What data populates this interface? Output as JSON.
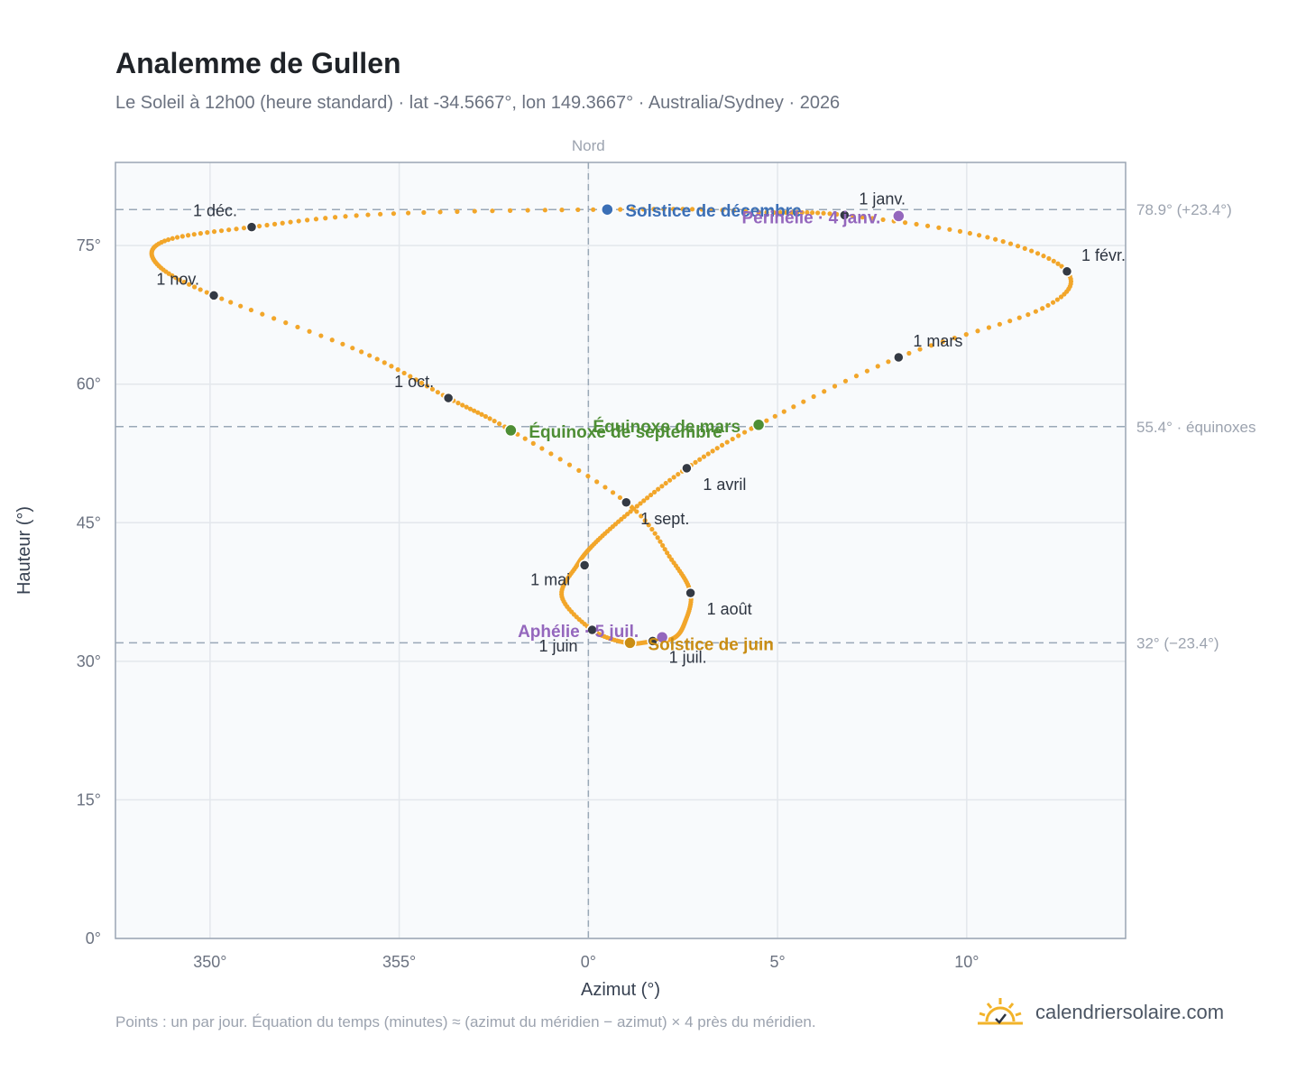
{
  "header": {
    "title": "Analemme de Gullen",
    "subtitle": "Le Soleil à 12h00 (heure standard) · lat -34.5667°, lon 149.3667° · Australia/Sydney · 2026"
  },
  "footer": {
    "note": "Points : un par jour. Équation du temps (minutes) ≈ (azimut du méridien − azimut) × 4 près du méridien.",
    "brand": "calendriersolaire.com"
  },
  "colors": {
    "curve": "#f2a62a",
    "month_dot": "#343a44",
    "solstice_dec": "#3b6fb6",
    "solstice_jun": "#c98d14",
    "equinox": "#4e8e35",
    "perihelion": "#9467bd",
    "plot_bg": "#f8fafc",
    "grid": "#e3e7ec",
    "ref_line": "#9aa8b7"
  },
  "chart_data": {
    "type": "scatter",
    "xlabel": "Azimut (°)",
    "ylabel": "Hauteur (°)",
    "x_axis": {
      "domain": [
        347.5,
        14.2
      ],
      "wraps_at": 360,
      "ticks": [
        350,
        355,
        0,
        5,
        10
      ],
      "tick_labels": [
        "350°",
        "355°",
        "0°",
        "5°",
        "10°"
      ]
    },
    "y_axis": {
      "domain": [
        0,
        84
      ],
      "ticks": [
        0,
        15,
        30,
        45,
        60,
        75
      ],
      "tick_labels": [
        "0°",
        "15°",
        "30°",
        "45°",
        "60°",
        "75°"
      ]
    },
    "grid": true,
    "meridian": {
      "azimuth": 0,
      "label": "Nord"
    },
    "reference_lines": [
      {
        "altitude": 78.9,
        "label": "78.9° (+23.4°)"
      },
      {
        "altitude": 55.4,
        "label": "55.4° · équinoxes"
      },
      {
        "altitude": 32.0,
        "label": "32° (−23.4°)"
      }
    ],
    "series": [
      {
        "name": "",
        "marker": "daily",
        "points": [
          [
            6.77,
            78.3
          ],
          [
            10.55,
            75.9
          ],
          [
            12.65,
            72.2
          ],
          [
            12.0,
            68.2
          ],
          [
            8.2,
            62.9
          ],
          [
            4.5,
            55.6
          ],
          [
            2.6,
            50.9
          ],
          [
            1.2,
            46.5
          ],
          [
            0.2,
            42.9
          ],
          [
            -0.3,
            40.4
          ],
          [
            -0.7,
            37.0
          ],
          [
            0.1,
            33.4
          ],
          [
            1.0,
            32.0
          ],
          [
            1.6,
            32.1
          ],
          [
            2.25,
            32.5
          ],
          [
            2.55,
            34.2
          ],
          [
            2.7,
            37.4
          ],
          [
            2.2,
            41.0
          ],
          [
            1.0,
            47.2
          ],
          [
            -2.05,
            55.0
          ],
          [
            -3.7,
            58.5
          ],
          [
            -6.0,
            63.5
          ],
          [
            -9.9,
            69.6
          ],
          [
            -11.4,
            73.0
          ],
          [
            -11.2,
            75.5
          ],
          [
            -8.9,
            77.0
          ],
          [
            -5.5,
            78.4
          ],
          [
            0.5,
            78.9
          ],
          [
            4.5,
            78.6
          ],
          [
            6.77,
            78.3
          ]
        ]
      }
    ],
    "month_markers": [
      {
        "label": "1 janv.",
        "az": 6.77,
        "alt": 78.3
      },
      {
        "label": "1 févr.",
        "az": 12.65,
        "alt": 72.2
      },
      {
        "label": "1 mars",
        "az": 8.2,
        "alt": 62.9
      },
      {
        "label": "1 avril",
        "az": 2.6,
        "alt": 50.9
      },
      {
        "label": "1 mai",
        "az": -0.1,
        "alt": 40.4
      },
      {
        "label": "1 juin",
        "az": 0.1,
        "alt": 33.4
      },
      {
        "label": "1 juil.",
        "az": 1.7,
        "alt": 32.2
      },
      {
        "label": "1 août",
        "az": 2.7,
        "alt": 37.4
      },
      {
        "label": "1 sept.",
        "az": 1.0,
        "alt": 47.2
      },
      {
        "label": "1 oct.",
        "az": -3.7,
        "alt": 58.5
      },
      {
        "label": "1 nov.",
        "az": -9.9,
        "alt": 69.6
      },
      {
        "label": "1 déc.",
        "az": -8.9,
        "alt": 77.0
      }
    ],
    "events": [
      {
        "label": "Solstice de décembre",
        "az": 0.5,
        "alt": 78.9,
        "color": "#3b6fb6"
      },
      {
        "label": "Périhélie · 4 janv.",
        "az": 8.2,
        "alt": 78.2,
        "color": "#9467bd"
      },
      {
        "label": "Équinoxe de mars",
        "az": 4.5,
        "alt": 55.6,
        "color": "#4e8e35"
      },
      {
        "label": "Équinoxe de septembre",
        "az": -2.05,
        "alt": 55.0,
        "color": "#4e8e35"
      },
      {
        "label": "Aphélie · 5 juil.",
        "az": 1.95,
        "alt": 32.6,
        "color": "#9467bd"
      },
      {
        "label": "Solstice de juin",
        "az": 1.1,
        "alt": 32.0,
        "color": "#c98d14"
      }
    ]
  }
}
